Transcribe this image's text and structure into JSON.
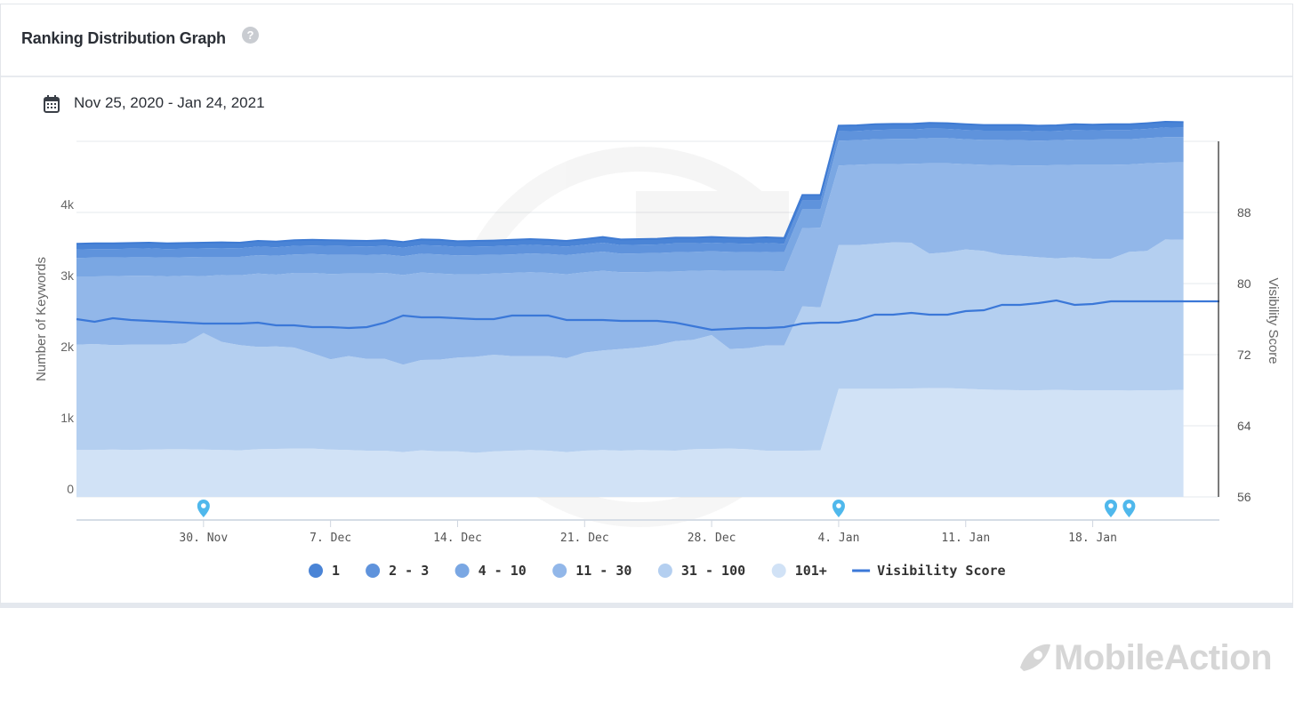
{
  "header": {
    "title": "Ranking Distribution Graph",
    "help_icon": "question-circle-icon"
  },
  "date_range": {
    "icon": "calendar-icon",
    "label": "Nov 25, 2020 - Jan 24, 2021"
  },
  "watermark": {
    "text": "MobileAction"
  },
  "chart_data": {
    "type": "area",
    "title": "",
    "xlabel": "",
    "ylabel": "Number of Keywords",
    "y2label": "Visibility Score",
    "ylim": [
      0,
      5000
    ],
    "y2lim": [
      56,
      96
    ],
    "yticks": [
      {
        "v": 0,
        "t": "0"
      },
      {
        "v": 1000,
        "t": "1k"
      },
      {
        "v": 2000,
        "t": "2k"
      },
      {
        "v": 3000,
        "t": "3k"
      },
      {
        "v": 4000,
        "t": "4k"
      }
    ],
    "y2ticks": [
      56,
      64,
      72,
      80,
      88
    ],
    "x_start": "2020-11-23",
    "x_end": "2021-01-24",
    "x_ticks": [
      {
        "date": "2020-11-30",
        "label": "30. Nov"
      },
      {
        "date": "2020-12-07",
        "label": "7. Dec"
      },
      {
        "date": "2020-12-14",
        "label": "14. Dec"
      },
      {
        "date": "2020-12-21",
        "label": "21. Dec"
      },
      {
        "date": "2020-12-28",
        "label": "28. Dec"
      },
      {
        "date": "2021-01-04",
        "label": "4. Jan"
      },
      {
        "date": "2021-01-11",
        "label": "11. Jan"
      },
      {
        "date": "2021-01-18",
        "label": "18. Jan"
      }
    ],
    "dates": [
      "2020-11-23",
      "2020-11-24",
      "2020-11-25",
      "2020-11-26",
      "2020-11-27",
      "2020-11-28",
      "2020-11-29",
      "2020-11-30",
      "2020-12-01",
      "2020-12-02",
      "2020-12-03",
      "2020-12-04",
      "2020-12-05",
      "2020-12-06",
      "2020-12-07",
      "2020-12-08",
      "2020-12-09",
      "2020-12-10",
      "2020-12-11",
      "2020-12-12",
      "2020-12-13",
      "2020-12-14",
      "2020-12-15",
      "2020-12-16",
      "2020-12-17",
      "2020-12-18",
      "2020-12-19",
      "2020-12-20",
      "2020-12-21",
      "2020-12-22",
      "2020-12-23",
      "2020-12-24",
      "2020-12-25",
      "2020-12-26",
      "2020-12-27",
      "2020-12-28",
      "2020-12-29",
      "2020-12-30",
      "2020-12-31",
      "2021-01-01",
      "2021-01-02",
      "2021-01-03",
      "2021-01-04",
      "2021-01-05",
      "2021-01-06",
      "2021-01-07",
      "2021-01-08",
      "2021-01-09",
      "2021-01-10",
      "2021-01-11",
      "2021-01-12",
      "2021-01-13",
      "2021-01-14",
      "2021-01-15",
      "2021-01-16",
      "2021-01-17",
      "2021-01-18",
      "2021-01-19",
      "2021-01-20",
      "2021-01-21",
      "2021-01-22",
      "2021-01-23"
    ],
    "series": [
      {
        "name": "101+",
        "color": "#d1e2f6",
        "values": [
          660,
          660,
          665,
          660,
          665,
          670,
          670,
          665,
          660,
          655,
          670,
          675,
          680,
          680,
          665,
          660,
          650,
          650,
          630,
          655,
          640,
          640,
          620,
          640,
          650,
          660,
          650,
          630,
          650,
          660,
          650,
          660,
          655,
          650,
          670,
          675,
          680,
          670,
          650,
          650,
          650,
          655,
          1520,
          1520,
          1520,
          1520,
          1525,
          1530,
          1530,
          1520,
          1510,
          1505,
          1500,
          1500,
          1505,
          1500,
          1500,
          1500,
          1495,
          1500,
          1500,
          1505
        ]
      },
      {
        "name": "31 - 100",
        "color": "#b4cff0",
        "values": [
          1480,
          1490,
          1470,
          1480,
          1475,
          1470,
          1490,
          1640,
          1520,
          1480,
          1440,
          1440,
          1420,
          1340,
          1270,
          1320,
          1290,
          1290,
          1230,
          1270,
          1290,
          1320,
          1350,
          1360,
          1330,
          1320,
          1330,
          1320,
          1380,
          1400,
          1430,
          1440,
          1480,
          1540,
          1540,
          1600,
          1400,
          1420,
          1480,
          1480,
          2030,
          2010,
          2020,
          2020,
          2040,
          2060,
          2050,
          1890,
          1910,
          1960,
          1950,
          1900,
          1890,
          1870,
          1850,
          1870,
          1850,
          1850,
          1950,
          1960,
          2120,
          2110
        ]
      },
      {
        "name": "11 - 30",
        "color": "#92b7e9",
        "values": [
          960,
          950,
          970,
          970,
          970,
          960,
          950,
          800,
          940,
          980,
          1030,
          1010,
          1050,
          1130,
          1200,
          1160,
          1200,
          1210,
          1260,
          1230,
          1210,
          1170,
          1160,
          1140,
          1170,
          1180,
          1170,
          1180,
          1130,
          1120,
          1080,
          1060,
          1030,
          980,
          970,
          910,
          1100,
          1090,
          1050,
          1040,
          1100,
          1120,
          1120,
          1130,
          1120,
          1100,
          1110,
          1270,
          1250,
          1200,
          1210,
          1260,
          1270,
          1290,
          1310,
          1300,
          1320,
          1320,
          1230,
          1230,
          1080,
          1090
        ]
      },
      {
        "name": "4 - 10",
        "color": "#7aa7e3",
        "values": [
          260,
          265,
          260,
          260,
          260,
          265,
          260,
          270,
          255,
          260,
          260,
          265,
          260,
          265,
          270,
          265,
          260,
          260,
          265,
          265,
          270,
          265,
          270,
          265,
          260,
          265,
          265,
          270,
          265,
          270,
          260,
          265,
          265,
          270,
          265,
          270,
          265,
          260,
          265,
          270,
          265,
          260,
          350,
          345,
          350,
          355,
          350,
          355,
          355,
          350,
          350,
          355,
          355,
          350,
          350,
          355,
          355,
          360,
          355,
          355,
          360,
          355
        ]
      },
      {
        "name": "2 - 3",
        "color": "#5f93dc",
        "values": [
          120,
          120,
          120,
          120,
          125,
          120,
          120,
          120,
          125,
          120,
          120,
          120,
          120,
          120,
          125,
          120,
          120,
          120,
          120,
          120,
          125,
          120,
          120,
          120,
          125,
          120,
          120,
          120,
          120,
          125,
          120,
          120,
          120,
          125,
          120,
          120,
          120,
          120,
          125,
          120,
          120,
          120,
          130,
          130,
          130,
          130,
          130,
          135,
          130,
          130,
          130,
          130,
          135,
          130,
          130,
          135,
          130,
          130,
          130,
          130,
          135,
          130
        ]
      },
      {
        "name": "1",
        "color": "#4a84d6",
        "values": [
          80,
          80,
          80,
          80,
          80,
          80,
          80,
          80,
          80,
          80,
          80,
          80,
          80,
          80,
          80,
          80,
          80,
          80,
          80,
          80,
          80,
          80,
          80,
          80,
          80,
          80,
          80,
          80,
          80,
          80,
          80,
          80,
          80,
          80,
          80,
          80,
          80,
          80,
          80,
          80,
          80,
          80,
          80,
          80,
          80,
          80,
          80,
          80,
          80,
          80,
          80,
          80,
          80,
          80,
          80,
          80,
          80,
          80,
          80,
          80,
          80,
          80
        ]
      }
    ],
    "line": {
      "name": "Visibility Score",
      "color": "#3b78d8",
      "values": [
        76,
        75.7,
        76.1,
        75.9,
        75.8,
        75.7,
        75.6,
        75.5,
        75.5,
        75.5,
        75.6,
        75.3,
        75.3,
        75.1,
        75.1,
        75.0,
        75.1,
        75.6,
        76.4,
        76.2,
        76.2,
        76.1,
        76.0,
        76.0,
        76.4,
        76.4,
        76.4,
        75.9,
        75.9,
        75.9,
        75.8,
        75.8,
        75.8,
        75.6,
        75.2,
        74.8,
        74.9,
        75.0,
        75.0,
        75.1,
        75.5,
        75.6,
        75.6,
        75.9,
        76.5,
        76.5,
        76.7,
        76.5,
        76.5,
        76.9,
        77.0,
        77.6,
        77.6,
        77.8,
        78.1,
        77.6,
        77.7,
        78.0,
        78.0,
        78.0,
        78.0,
        78.0
      ]
    },
    "markers": [
      "2020-11-30",
      "2021-01-04",
      "2021-01-19",
      "2021-01-20"
    ],
    "legend_position": "bottom",
    "legend": [
      {
        "label": "1",
        "color": "#4a84d6",
        "kind": "dot"
      },
      {
        "label": "2 - 3",
        "color": "#5f93dc",
        "kind": "dot"
      },
      {
        "label": "4 - 10",
        "color": "#7aa7e3",
        "kind": "dot"
      },
      {
        "label": "11 - 30",
        "color": "#92b7e9",
        "kind": "dot"
      },
      {
        "label": "31 - 100",
        "color": "#b4cff0",
        "kind": "dot"
      },
      {
        "label": "101+",
        "color": "#d1e2f6",
        "kind": "dot"
      },
      {
        "label": "Visibility Score",
        "color": "#3b78d8",
        "kind": "line"
      }
    ],
    "grid": true
  }
}
